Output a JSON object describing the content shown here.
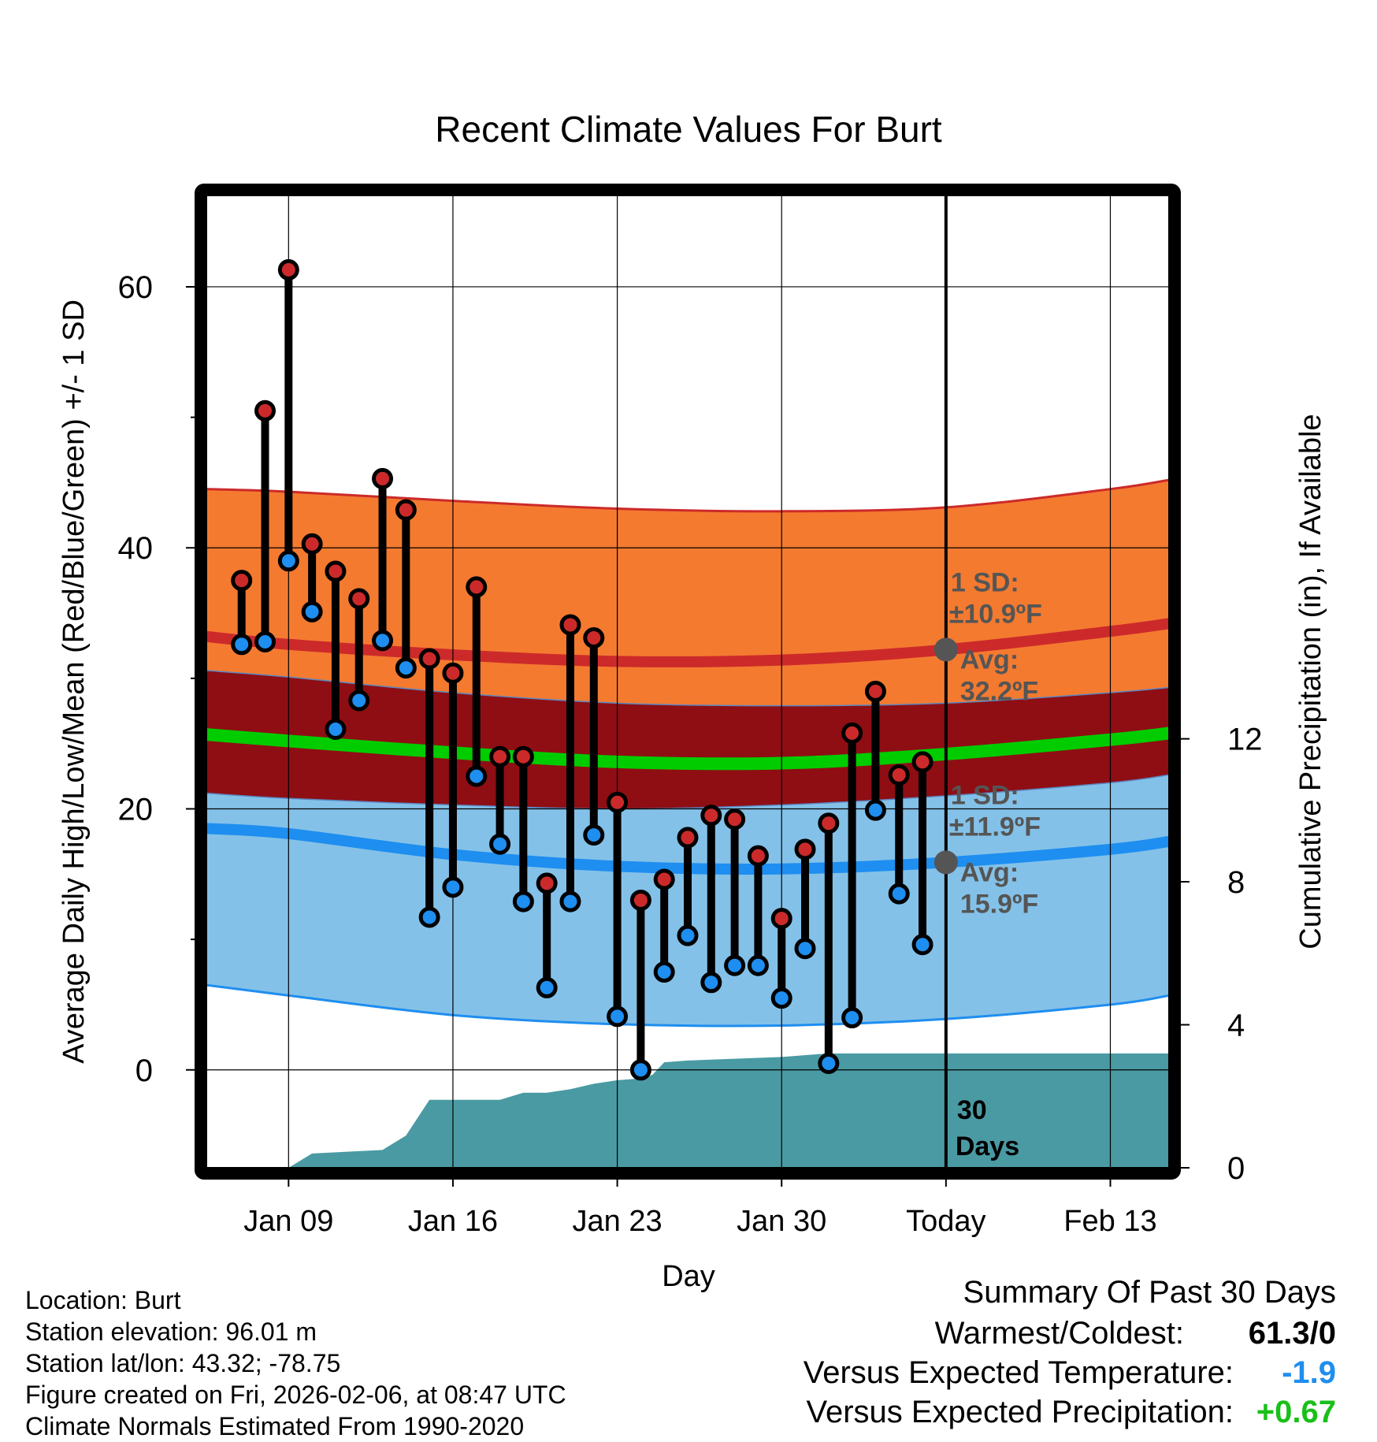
{
  "chart_data": {
    "type": "line",
    "title": "Recent Climate Values For Burt",
    "xlabel": "Day",
    "ylabel": "Average Daily High/Low/Mean (Red/Blue/Green) +/- 1 SD",
    "y2label": "Cumulative Precipitation (in), If Available",
    "ylim": [
      -7.5,
      67
    ],
    "y2lim": [
      0,
      27.2
    ],
    "xlim": [
      5.5,
      46.5
    ],
    "x_ticks": [
      {
        "x": 9,
        "label": "Jan 09"
      },
      {
        "x": 16,
        "label": "Jan 16"
      },
      {
        "x": 23,
        "label": "Jan 23"
      },
      {
        "x": 30,
        "label": "Jan 30"
      },
      {
        "x": 37,
        "label": "Today"
      },
      {
        "x": 44,
        "label": "Feb 13"
      }
    ],
    "y_ticks": [
      0,
      20,
      40,
      60
    ],
    "y_minor_ticks": [
      10,
      30,
      50
    ],
    "y2_ticks": [
      0,
      4,
      8,
      12
    ],
    "today_x": 37,
    "days_label": [
      "30",
      "Days"
    ],
    "normals_x": [
      5.5,
      9,
      16,
      23,
      30,
      37,
      44,
      46.5
    ],
    "normal_high_avg": [
      33.2,
      32.6,
      31.8,
      31.3,
      31.4,
      32.2,
      33.6,
      34.2
    ],
    "normal_high_upper": [
      44.5,
      44.3,
      43.6,
      43.0,
      42.8,
      43.1,
      44.5,
      45.2
    ],
    "normal_high_lower": [
      30.6,
      30.1,
      28.9,
      28.1,
      27.9,
      28.1,
      28.9,
      29.3
    ],
    "normal_mean": [
      25.7,
      25.2,
      24.3,
      23.6,
      23.5,
      24.2,
      25.3,
      25.8
    ],
    "normal_low_avg": [
      18.5,
      18.1,
      16.5,
      15.6,
      15.4,
      15.9,
      16.9,
      17.5
    ],
    "normal_low_upper": [
      21.2,
      20.8,
      20.3,
      20.0,
      20.3,
      21.0,
      22.0,
      22.6
    ],
    "normal_low_lower": [
      6.5,
      5.7,
      4.2,
      3.5,
      3.4,
      3.9,
      5.0,
      5.7
    ],
    "days": [
      7,
      8,
      9,
      10,
      11,
      12,
      13,
      14,
      15,
      16,
      17,
      18,
      19,
      20,
      21,
      22,
      23,
      24,
      25,
      26,
      27,
      28,
      29,
      30,
      31,
      32,
      33,
      34,
      35,
      36
    ],
    "highs": [
      37.5,
      50.5,
      61.3,
      40.3,
      38.2,
      36.1,
      45.3,
      42.9,
      31.5,
      30.4,
      37.0,
      24.0,
      24.0,
      14.3,
      34.1,
      33.1,
      20.5,
      13.0,
      14.6,
      17.8,
      19.5,
      19.2,
      16.4,
      11.6,
      16.9,
      18.9,
      25.8,
      29.0,
      22.6,
      23.6
    ],
    "lows": [
      32.6,
      32.8,
      39.0,
      35.1,
      26.1,
      28.3,
      32.9,
      30.8,
      11.7,
      14.0,
      22.5,
      17.3,
      12.9,
      6.3,
      12.9,
      18.0,
      4.1,
      0.0,
      7.5,
      10.3,
      6.7,
      8.0,
      8.0,
      5.5,
      9.3,
      0.5,
      4.0,
      19.9,
      13.5,
      9.6
    ],
    "precip_x": [
      5.5,
      9.0,
      10.0,
      13.0,
      14.0,
      15.0,
      16.0,
      18.0,
      19.0,
      20.0,
      21.0,
      22.0,
      23.0,
      24.0,
      24.5,
      25.0,
      26.0,
      28.0,
      30.0,
      32.0,
      37.0,
      46.5
    ],
    "precip_cum": [
      0.0,
      0.0,
      0.4,
      0.5,
      0.9,
      1.9,
      1.9,
      1.9,
      2.1,
      2.1,
      2.2,
      2.35,
      2.45,
      2.5,
      2.6,
      2.95,
      3.0,
      3.05,
      3.1,
      3.2,
      3.2,
      3.2
    ],
    "high_annotation": {
      "x": 37,
      "y": 32.2,
      "sd_label": "1 SD:",
      "sd_value": "±10.9ºF",
      "avg_label": "Avg:",
      "avg_value": "32.2ºF"
    },
    "low_annotation": {
      "x": 37,
      "y": 15.9,
      "sd_label": "1 SD:",
      "sd_value": "±11.9ºF",
      "avg_label": "Avg:",
      "avg_value": "15.9ºF"
    }
  },
  "info": {
    "location": "Location: Burt",
    "elevation": "Station elevation: 96.01 m",
    "latlon": "Station lat/lon: 43.32; -78.75",
    "created": "Figure created on Fri, 2026-02-06, at 08:47 UTC",
    "normals": "Climate Normals Estimated From 1990-2020"
  },
  "summary": {
    "title": "Summary Of Past 30 Days",
    "warmest_label": "Warmest/Coldest:",
    "warmest_value": "61.3/0",
    "temp_label": "Versus Expected Temperature:",
    "temp_value": "-1.9",
    "precip_label": "Versus Expected Precipitation:",
    "precip_value": "+0.67"
  },
  "colors": {
    "high_band": "#f47a30",
    "high_line": "#cc2a2a",
    "overlap_band": "#8e0e14",
    "mean_line": "#00cc00",
    "low_band": "#84c1e8",
    "low_line": "#1e8ef0",
    "precip_fill": "#4a9aa3",
    "high_dot": "#cc2a2a",
    "low_dot": "#1e8ef0",
    "temp_value_color": "#1e8ef0",
    "precip_value_color": "#18c018",
    "annotation_text": "#555555"
  }
}
